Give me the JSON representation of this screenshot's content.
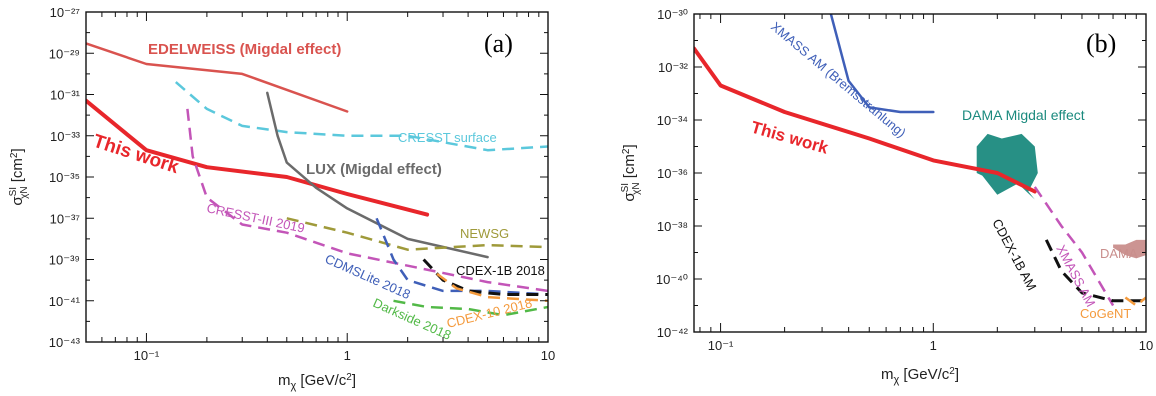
{
  "chart_data": [
    {
      "type": "line",
      "panel_label": "(a)",
      "xlabel": "m_χ [GeV/c²]",
      "ylabel": "σ^SI_χN [cm²]",
      "x_scale": "log",
      "y_scale": "log",
      "xlim": [
        0.05,
        10
      ],
      "ylim": [
        1e-43,
        1e-27
      ],
      "x_ticks": [
        {
          "value": 0.1,
          "label": "10⁻¹"
        },
        {
          "value": 1,
          "label": "1"
        },
        {
          "value": 10,
          "label": "10"
        }
      ],
      "y_ticks": [
        {
          "value": 1e-43,
          "label": "10⁻⁴³"
        },
        {
          "value": 1e-41,
          "label": "10⁻⁴¹"
        },
        {
          "value": 1e-39,
          "label": "10⁻³⁹"
        },
        {
          "value": 1e-37,
          "label": "10⁻³⁷"
        },
        {
          "value": 1e-35,
          "label": "10⁻³⁵"
        },
        {
          "value": 1e-33,
          "label": "10⁻³³"
        },
        {
          "value": 1e-31,
          "label": "10⁻³¹"
        },
        {
          "value": 1e-29,
          "label": "10⁻²⁹"
        },
        {
          "value": 1e-27,
          "label": "10⁻²⁷"
        }
      ],
      "grid": false,
      "series": [
        {
          "name": "EDELWEISS (Migdal effect)",
          "color": "#d9534f",
          "style": "solid",
          "width": 2.5,
          "label_bold": true,
          "x": [
            0.05,
            0.1,
            0.3,
            1.0
          ],
          "y": [
            3e-29,
            3e-30,
            1e-30,
            1.5e-32
          ]
        },
        {
          "name": "This work",
          "color": "#e8262b",
          "style": "solid",
          "width": 4,
          "label_bold": true,
          "x": [
            0.05,
            0.1,
            0.2,
            0.5,
            1.0,
            2.5
          ],
          "y": [
            5e-32,
            2e-34,
            3e-35,
            1e-35,
            1.5e-36,
            1.5e-37
          ]
        },
        {
          "name": "CRESST surface",
          "color": "#5bc8dc",
          "style": "dash",
          "width": 2.5,
          "x": [
            0.14,
            0.2,
            0.3,
            0.5,
            1.0,
            2.0,
            5.0,
            10.0
          ],
          "y": [
            4e-31,
            2e-32,
            3e-33,
            1.5e-33,
            1e-33,
            1e-33,
            2e-34,
            3e-34
          ]
        },
        {
          "name": "LUX (Migdal effect)",
          "color": "#6b6b6b",
          "style": "solid",
          "width": 2.5,
          "label_bold": true,
          "x": [
            0.4,
            0.45,
            0.5,
            0.7,
            1.0,
            2.0,
            5.0
          ],
          "y": [
            1.2e-31,
            1e-33,
            5e-35,
            3e-36,
            3e-37,
            1e-38,
            1.3e-39
          ]
        },
        {
          "name": "CRESST-III 2019",
          "color": "#c355b8",
          "style": "dash",
          "width": 2.5,
          "x": [
            0.16,
            0.17,
            0.2,
            0.3,
            0.5,
            1.0,
            2.0,
            5.0,
            10.0
          ],
          "y": [
            2e-32,
            1e-34,
            1e-36,
            5e-38,
            2e-38,
            2e-39,
            5e-40,
            8e-41,
            3e-41
          ]
        },
        {
          "name": "NEWSG",
          "color": "#9f9a3a",
          "style": "dash",
          "width": 2.5,
          "x": [
            0.5,
            1.0,
            2.0,
            5.0,
            10.0
          ],
          "y": [
            1e-37,
            2e-38,
            3e-39,
            5e-39,
            4e-39
          ]
        },
        {
          "name": "CDMSLite 2018",
          "color": "#3f5fb8",
          "style": "dash",
          "width": 2.5,
          "x": [
            1.4,
            1.7,
            2.0,
            3.0,
            5.0,
            10.0
          ],
          "y": [
            1e-37,
            1e-39,
            1e-40,
            3e-41,
            3e-41,
            2e-41
          ]
        },
        {
          "name": "CDEX-1B 2018",
          "color": "#111111",
          "style": "dash",
          "width": 3,
          "x": [
            2.4,
            3.0,
            4.0,
            6.0,
            10.0
          ],
          "y": [
            1e-39,
            1e-40,
            3e-41,
            2e-41,
            2e-41
          ]
        },
        {
          "name": "CDEX-10 2018",
          "color": "#f49a3c",
          "style": "dash",
          "width": 2.5,
          "x": [
            2.8,
            3.5,
            5.0,
            10.0
          ],
          "y": [
            2e-40,
            4e-41,
            1.5e-41,
            1e-41
          ]
        },
        {
          "name": "Darkside 2018",
          "color": "#52b947",
          "style": "dash",
          "width": 2.5,
          "x": [
            1.7,
            2.5,
            4.0,
            6.0,
            10.0
          ],
          "y": [
            1e-41,
            5e-42,
            4e-42,
            2e-42,
            5e-42
          ]
        }
      ]
    },
    {
      "type": "line",
      "panel_label": "(b)",
      "xlabel": "m_χ [GeV/c²]",
      "ylabel": "σ^SI_χN [cm²]",
      "x_scale": "log",
      "y_scale": "log",
      "xlim": [
        0.075,
        10
      ],
      "ylim": [
        1e-42,
        1e-30
      ],
      "x_ticks": [
        {
          "value": 0.1,
          "label": "10⁻¹"
        },
        {
          "value": 1,
          "label": "1"
        },
        {
          "value": 10,
          "label": "10"
        }
      ],
      "y_ticks": [
        {
          "value": 1e-42,
          "label": "10⁻⁴²"
        },
        {
          "value": 1e-40,
          "label": "10⁻⁴⁰"
        },
        {
          "value": 1e-38,
          "label": "10⁻³⁸"
        },
        {
          "value": 1e-36,
          "label": "10⁻³⁶"
        },
        {
          "value": 1e-34,
          "label": "10⁻³⁴"
        },
        {
          "value": 1e-32,
          "label": "10⁻³²"
        },
        {
          "value": 1e-30,
          "label": "10⁻³⁰"
        }
      ],
      "grid": false,
      "series": [
        {
          "name": "XMASS AM (Bremsstrahlung)",
          "color": "#3f5fb8",
          "style": "solid",
          "width": 2.5,
          "x": [
            0.33,
            0.4,
            0.5,
            0.7,
            1.0
          ],
          "y": [
            1e-30,
            3e-33,
            3e-34,
            2e-34,
            2e-34
          ]
        },
        {
          "name": "This work",
          "color": "#e8262b",
          "style": "solid",
          "width": 4,
          "label_bold": true,
          "x": [
            0.075,
            0.1,
            0.2,
            0.5,
            1.0,
            2.0,
            3.0
          ],
          "y": [
            5e-32,
            2e-33,
            2e-34,
            2e-35,
            3e-36,
            1e-36,
            2e-37
          ]
        },
        {
          "name": "XMASS AM",
          "color": "#c355b8",
          "style": "dash",
          "width": 2.5,
          "x": [
            3.0,
            4.0,
            5.0,
            7.0
          ],
          "y": [
            3e-37,
            1e-38,
            1e-39,
            1e-41
          ]
        },
        {
          "name": "CDEX-1B AM",
          "color": "#111111",
          "style": "dash",
          "width": 3,
          "x": [
            3.4,
            4.0,
            5.0,
            7.0,
            10.0
          ],
          "y": [
            3e-39,
            2e-40,
            3e-41,
            1.5e-41,
            1.5e-41
          ]
        },
        {
          "name": "CoGeNT",
          "color": "#f49a3c",
          "style": "dash",
          "width": 2.5,
          "x": [
            8.0,
            9.0,
            10.0
          ],
          "y": [
            2e-41,
            1e-41,
            2e-41
          ]
        }
      ],
      "regions": [
        {
          "name": "DAMA Migdal effect",
          "color": "#1b8a7e",
          "x": [
            1.6,
            1.8,
            2.1,
            2.6,
            3.0,
            3.1,
            2.8,
            3.0,
            2.5,
            2.0,
            1.7,
            1.6
          ],
          "y": [
            1e-35,
            3e-35,
            2e-35,
            3e-35,
            1e-35,
            1e-36,
            2e-37,
            1e-37,
            4e-37,
            1.5e-37,
            8e-37,
            1e-36
          ]
        },
        {
          "name": "DAMA",
          "color": "#c98e8c",
          "x": [
            7.0,
            8.0,
            9.0,
            10.0,
            10.0,
            9.0,
            8.0,
            7.0
          ],
          "y": [
            2e-39,
            2e-39,
            3e-39,
            3e-39,
            8e-40,
            6e-40,
            8e-40,
            1.5e-39
          ]
        }
      ]
    }
  ]
}
